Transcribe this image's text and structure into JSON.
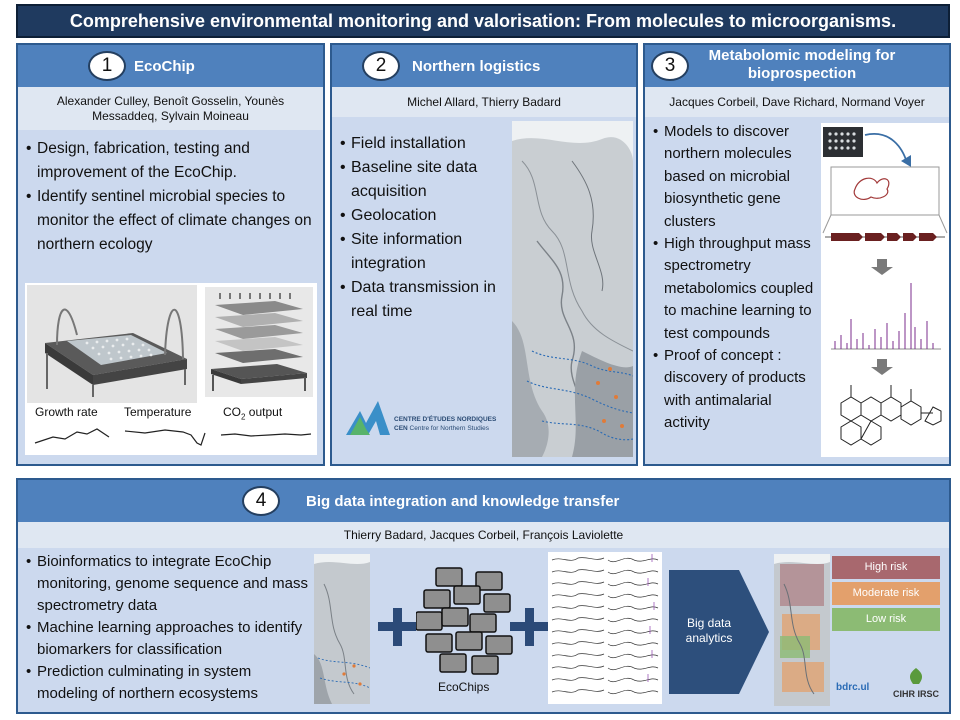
{
  "title": "Comprehensive environmental monitoring and valorisation: From molecules to microorganisms.",
  "panels": [
    {
      "number": "1",
      "title": "EcoChip",
      "authors": "Alexander Culley, Benoît Gosselin, Younès Messaddeq, Sylvain Moineau",
      "bullets": [
        "Design, fabrication, testing and improvement of the EcoChip.",
        "Identify sentinel microbial species to monitor the effect of climate changes on northern ecology"
      ],
      "captions": {
        "growth": "Growth rate",
        "temperature": "Temperature",
        "co2": "CO",
        "co2_sub": "2",
        "co2_rest": " output"
      }
    },
    {
      "number": "2",
      "title": "Northern logistics",
      "authors": "Michel Allard, Thierry Badard",
      "bullets": [
        "Field installation",
        "Baseline site data acquisition",
        "Geolocation",
        "Site information integration",
        "Data transmission in real time"
      ],
      "logo": {
        "line1": "CENTRE D'ÉTUDES NORDIQUES",
        "line2_abbr": "CEN",
        "line2_rest": "Centre for Northern Studies"
      }
    },
    {
      "number": "3",
      "title": "Metabolomic modeling for bioprospection",
      "authors": "Jacques Corbeil, Dave Richard, Normand Voyer",
      "bullets": [
        "Models to discover northern molecules based on microbial biosynthetic gene clusters",
        "High throughput mass spectrometry metabolomics coupled to machine learning to test compounds",
        "Proof of concept : discovery of products with antimalarial activity"
      ]
    },
    {
      "number": "4",
      "title": "Big data integration and knowledge transfer",
      "authors": "Thierry Badard, Jacques Corbeil, François Laviolette",
      "bullets": [
        "Bioinformatics to integrate EcoChip monitoring, genome sequence and mass spectrometry data",
        "Machine learning approaches to identify biomarkers for classification",
        "Prediction culminating in system modeling of northern ecosystems"
      ],
      "ecochips_label": "EcoChips",
      "analytics_label": "Big data analytics",
      "risk_legend": [
        {
          "label": "High risk",
          "color": "#a8686e"
        },
        {
          "label": "Moderate risk",
          "color": "#e3a06c"
        },
        {
          "label": "Low risk",
          "color": "#8cbb74"
        }
      ],
      "logos": {
        "bdrc": "bdrc.ul",
        "cihr": "CIHR IRSC"
      }
    }
  ],
  "colors": {
    "panel_fill": "#ccd9ee",
    "panel_border": "#2d5a8e",
    "header_fill": "#4f81bd",
    "title_fill": "#1f3a5f",
    "arrow_fill": "#2d4f7c",
    "plus_fill": "#2b4a78"
  },
  "icons": [
    "plus-icon",
    "arrow-right-icon",
    "arrow-down-icon",
    "bullet-icon"
  ]
}
